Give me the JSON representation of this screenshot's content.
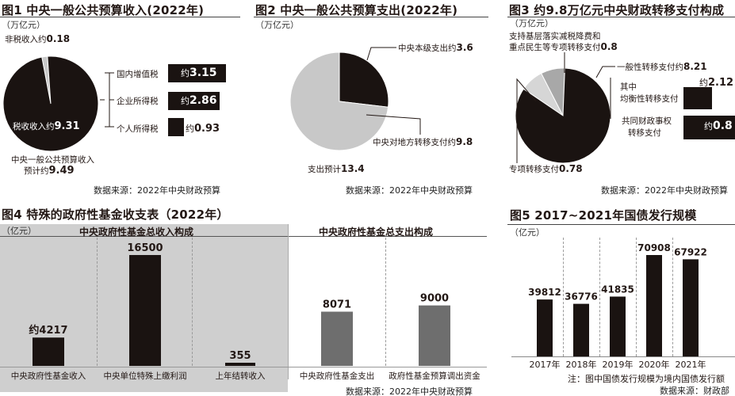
{
  "fig1": {
    "title": "图1 中央一般公共预算收入(2022年)",
    "unit": "（万亿元）",
    "nontax_label": "非税收入约",
    "nontax_value": "0.18",
    "tax_label": "税收收入约",
    "tax_value": "9.31",
    "total_label": "中央一般公共预算收入",
    "total_label2": "预计约",
    "total_value": "9.49",
    "items": [
      {
        "name": "国内增值税",
        "prefix": "约",
        "value": "3.15"
      },
      {
        "name": "企业所得税",
        "prefix": "约",
        "value": "2.86"
      },
      {
        "name": "个人所得税",
        "prefix": "约",
        "value": "0.93"
      }
    ],
    "source": "数据来源：2022年中央财政预算"
  },
  "fig2": {
    "title": "图2 中央一般公共预算支出(2022年)",
    "unit": "（万亿元）",
    "own_label": "中央本级支出约",
    "own_value": "3.6",
    "transfer_label": "中央对地方转移支付约",
    "transfer_value": "9.8",
    "total_label": "支出预计",
    "total_value": "13.4",
    "source": "数据来源：2022年中央财政预算"
  },
  "fig3": {
    "title": "图3 约9.8万亿元中央财政转移支付构成",
    "unit": "（万亿元）",
    "relief_label1": "支持基层落实减税降费和",
    "relief_label2": "重点民生等专项转移支付",
    "relief_value": "0.8",
    "general_label": "一般性转移支付约",
    "general_value": "8.21",
    "among_label": "其中",
    "balance_label": "均衡性转移支付",
    "balance_prefix": "约",
    "balance_value": "2.12",
    "shared_label1": "共同财政事权",
    "shared_label2": "转移支付",
    "shared_prefix": "约",
    "shared_value": "0.8",
    "special_label": "专项转移支付",
    "special_value": "0.78",
    "source": "数据来源：2022年中央财政预算"
  },
  "fig4": {
    "title": "图4 特殊的政府性基金收支表（2022年）",
    "unit": "（亿元）",
    "income_header": "中央政府性基金总收入构成",
    "expense_header": "中央政府性基金总支出构成",
    "source": "数据来源：2022年中央财政预算"
  },
  "fig5": {
    "title": "图5 2017~2021年国债发行规模",
    "unit": "（亿元）",
    "note": "注：图中国债发行规模为境内国债发行额",
    "source": "数据来源：财政部"
  },
  "chart_data": [
    {
      "type": "pie",
      "title": "图1 中央一般公共预算收入(2022年)",
      "unit": "万亿元",
      "labels": [
        "税收收入",
        "非税收入"
      ],
      "values": [
        9.31,
        0.18
      ],
      "total": 9.49,
      "breakdown": {
        "labels": [
          "国内增值税",
          "企业所得税",
          "个人所得税"
        ],
        "values": [
          3.15,
          2.86,
          0.93
        ]
      },
      "colors": [
        "#1a1311",
        "#c8c8c8"
      ]
    },
    {
      "type": "pie",
      "title": "图2 中央一般公共预算支出(2022年)",
      "unit": "万亿元",
      "labels": [
        "中央本级支出",
        "中央对地方转移支付"
      ],
      "values": [
        3.6,
        9.8
      ],
      "total": 13.4,
      "colors": [
        "#1a1311",
        "#c8c8c8"
      ]
    },
    {
      "type": "pie",
      "title": "图3 约9.8万亿元中央财政转移支付构成",
      "unit": "万亿元",
      "labels": [
        "一般性转移支付",
        "专项转移支付",
        "支持基层落实减税降费和重点民生等专项转移支付"
      ],
      "values": [
        8.21,
        0.78,
        0.8
      ],
      "breakdown": {
        "labels": [
          "均衡性转移支付",
          "共同财政事权转移支付"
        ],
        "values": [
          2.12,
          0.8
        ]
      },
      "colors": [
        "#1a1311",
        "#d6d6d6",
        "#a8a8a8"
      ]
    },
    {
      "type": "bar",
      "title": "图4 特殊的政府性基金收支表（2022年）",
      "unit": "亿元",
      "categories": [
        "中央政府性基金收入",
        "中央单位特殊上缴利润",
        "上年结转收入",
        "中央政府性基金支出",
        "政府性基金预算调出资金"
      ],
      "values": [
        4217,
        16500,
        355,
        8071,
        9000
      ],
      "value_labels": [
        "约4217",
        "16500",
        "355",
        "8071",
        "9000"
      ],
      "groups": [
        "中央政府性基金总收入构成",
        "中央政府性基金总收入构成",
        "中央政府性基金总收入构成",
        "中央政府性基金总支出构成",
        "中央政府性基金总支出构成"
      ],
      "colors": [
        "#1a1311",
        "#1a1311",
        "#1a1311",
        "#6e6e6e",
        "#6e6e6e"
      ],
      "ylim": [
        0,
        18500
      ]
    },
    {
      "type": "bar",
      "title": "图5 2017~2021年国债发行规模",
      "unit": "亿元",
      "categories": [
        "2017年",
        "2018年",
        "2019年",
        "2020年",
        "2021年"
      ],
      "values": [
        39812,
        36776,
        41835,
        70908,
        67922
      ],
      "colors": [
        "#1a1311"
      ],
      "ylim": [
        0,
        78000
      ]
    }
  ]
}
